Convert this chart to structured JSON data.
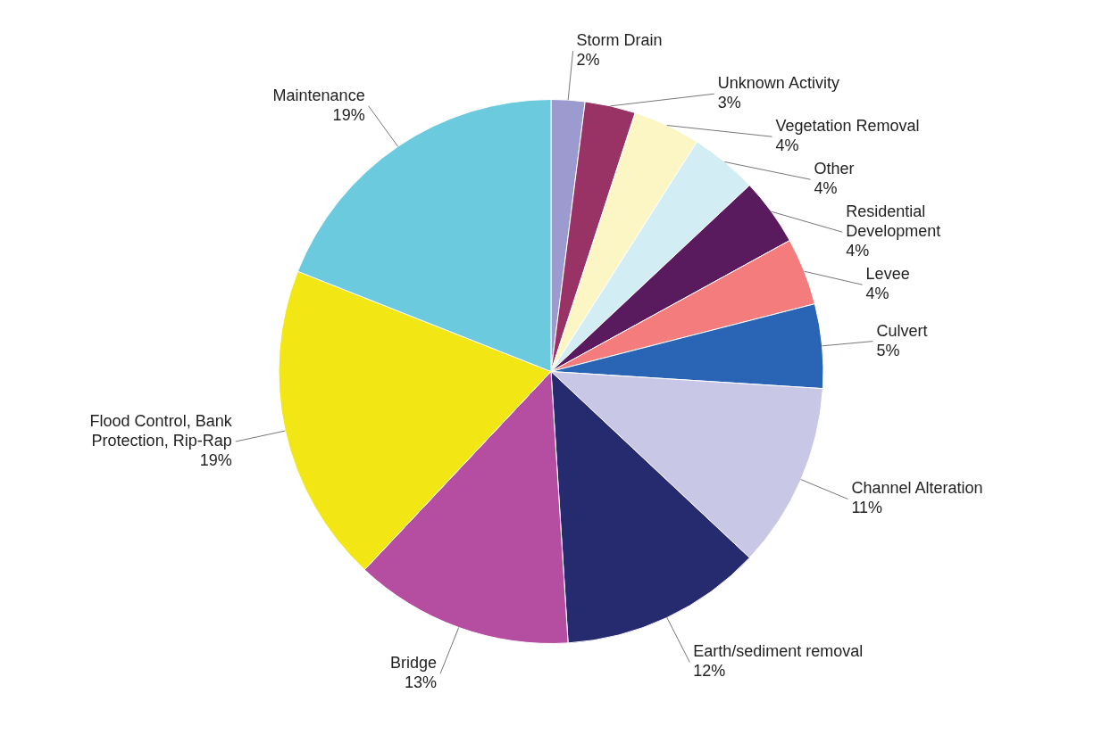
{
  "chart_data": {
    "type": "pie",
    "categories": [
      "Storm Drain",
      "Unknown Activity",
      "Vegetation Removal",
      "Other",
      "Residential Development",
      "Levee",
      "Culvert",
      "Channel Alteration",
      "Earth/sediment removal",
      "Bridge",
      "Flood Control, Bank Protection, Rip-Rap",
      "Maintenance"
    ],
    "values": [
      2,
      3,
      4,
      4,
      4,
      4,
      5,
      11,
      12,
      13,
      19,
      19
    ],
    "value_labels": [
      "2%",
      "3%",
      "4%",
      "4%",
      "4%",
      "4%",
      "5%",
      "11%",
      "12%",
      "13%",
      "19%",
      "19%"
    ],
    "colors": [
      "#9b9bcf",
      "#993366",
      "#fbf6c4",
      "#d2eef4",
      "#5a1a5e",
      "#f47c7c",
      "#2a64b4",
      "#c8c8e6",
      "#262a6e",
      "#b54ea0",
      "#f2e614",
      "#6ccadf"
    ]
  }
}
